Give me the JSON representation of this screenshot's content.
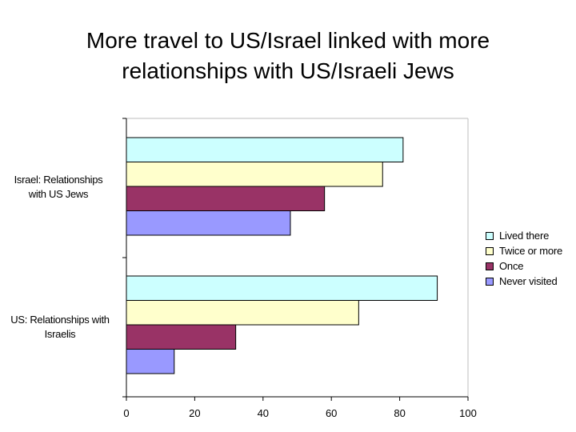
{
  "title_line1": "More travel to US/Israel linked with more",
  "title_line2": "relationships with US/Israeli Jews",
  "chart_data": {
    "type": "bar",
    "orientation": "horizontal",
    "categories": [
      "Israel: Relationships with US Jews",
      "US: Relationships with Israelis"
    ],
    "category_lines": [
      [
        "Israel: Relationships",
        "with US Jews"
      ],
      [
        "US: Relationships with",
        "Israelis"
      ]
    ],
    "series": [
      {
        "name": "Lived there",
        "color": "#ccffff",
        "values": [
          81,
          91
        ]
      },
      {
        "name": "Twice or more",
        "color": "#ffffcc",
        "values": [
          75,
          68
        ]
      },
      {
        "name": "Once",
        "color": "#993366",
        "values": [
          58,
          32
        ]
      },
      {
        "name": "Never visited",
        "color": "#9999ff",
        "values": [
          48,
          14
        ]
      }
    ],
    "xlim": [
      0,
      100
    ],
    "xticks": [
      "0",
      "20",
      "40",
      "60",
      "80",
      "100"
    ],
    "grid": false,
    "legend": "right"
  }
}
